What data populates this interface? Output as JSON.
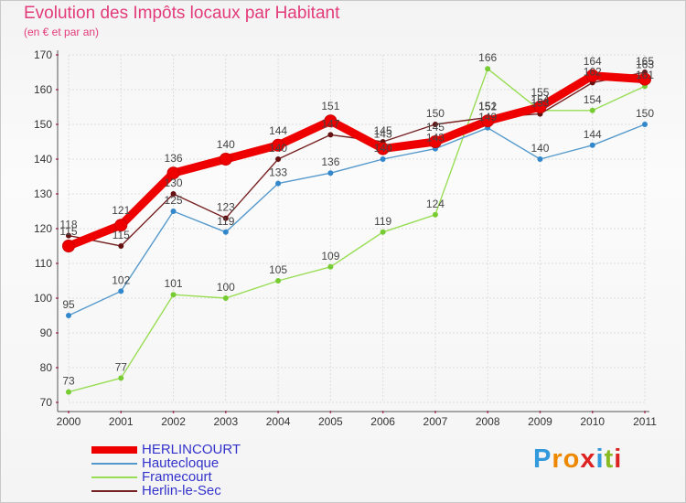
{
  "chart_data": {
    "type": "line",
    "title": "Evolution des Impôts locaux par Habitant",
    "subtitle": "(en € et par an)",
    "categories": [
      "2000",
      "2001",
      "2002",
      "2003",
      "2004",
      "2005",
      "2006",
      "2007",
      "2008",
      "2009",
      "2010",
      "2011"
    ],
    "ylim": [
      70,
      170
    ],
    "yticks": [
      70,
      80,
      90,
      100,
      110,
      120,
      130,
      140,
      150,
      160,
      170
    ],
    "grid": true,
    "series": [
      {
        "name": "Framecourt",
        "color": "#99dd55",
        "point_color": "#77cc33",
        "values": [
          73,
          77,
          101,
          100,
          105,
          109,
          119,
          124,
          166,
          154,
          154,
          161
        ]
      },
      {
        "name": "Hautecloque",
        "color": "#5599cc",
        "point_color": "#3388cc",
        "values": [
          95,
          102,
          125,
          119,
          133,
          136,
          140,
          143,
          149,
          140,
          144,
          150
        ]
      },
      {
        "name": "Herlin-le-Sec",
        "color": "#772222",
        "point_color": "#661111",
        "values": [
          118,
          115,
          130,
          123,
          140,
          147,
          145,
          150,
          152,
          153,
          162,
          165
        ]
      },
      {
        "name": "HERLINCOURT",
        "color": "#ee0000",
        "point_color": "#ee0000",
        "values": [
          115,
          121,
          136,
          140,
          144,
          151,
          143,
          145,
          151,
          155,
          164,
          163
        ]
      }
    ],
    "legend": [
      {
        "name": "HERLINCOURT",
        "color": "#ee0000",
        "weight": 8
      },
      {
        "name": "Hautecloque",
        "color": "#5599cc",
        "weight": 2
      },
      {
        "name": "Framecourt",
        "color": "#99dd55",
        "weight": 2
      },
      {
        "name": "Herlin-le-Sec",
        "color": "#772222",
        "weight": 2
      }
    ]
  },
  "logo": {
    "letters": [
      "P",
      "r",
      "o",
      "x",
      "i",
      "t",
      "i"
    ],
    "colors": [
      "#3399dd",
      "#ee8800",
      "#ee8800",
      "#dd2222",
      "#3399dd",
      "#88bb22",
      "#dd2222"
    ]
  }
}
